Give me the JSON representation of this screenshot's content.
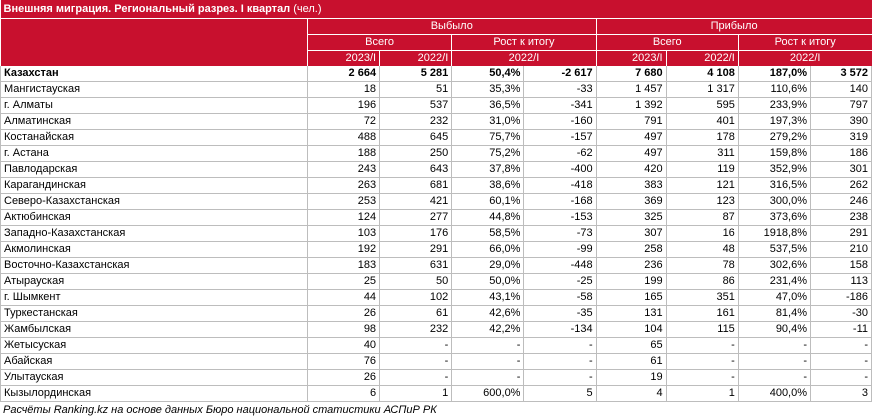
{
  "title": "Внешняя миграция. Региональный разрез. I квартал",
  "unit": "(чел.)",
  "headers": {
    "group_left": "Выбыло",
    "group_right": "Прибыло",
    "total": "Всего",
    "growth": "Рост к итогу",
    "y2023": "2023/I",
    "y2022": "2022/I"
  },
  "rows": [
    [
      "Казахстан",
      "2 664",
      "5 281",
      "50,4%",
      "-2 617",
      "7 680",
      "4 108",
      "187,0%",
      "3 572"
    ],
    [
      "Мангистауская",
      "18",
      "51",
      "35,3%",
      "-33",
      "1 457",
      "1 317",
      "110,6%",
      "140"
    ],
    [
      "г. Алматы",
      "196",
      "537",
      "36,5%",
      "-341",
      "1 392",
      "595",
      "233,9%",
      "797"
    ],
    [
      "Алматинская",
      "72",
      "232",
      "31,0%",
      "-160",
      "791",
      "401",
      "197,3%",
      "390"
    ],
    [
      "Костанайская",
      "488",
      "645",
      "75,7%",
      "-157",
      "497",
      "178",
      "279,2%",
      "319"
    ],
    [
      "г. Астана",
      "188",
      "250",
      "75,2%",
      "-62",
      "497",
      "311",
      "159,8%",
      "186"
    ],
    [
      "Павлодарская",
      "243",
      "643",
      "37,8%",
      "-400",
      "420",
      "119",
      "352,9%",
      "301"
    ],
    [
      "Карагандинская",
      "263",
      "681",
      "38,6%",
      "-418",
      "383",
      "121",
      "316,5%",
      "262"
    ],
    [
      "Северо-Казахстанская",
      "253",
      "421",
      "60,1%",
      "-168",
      "369",
      "123",
      "300,0%",
      "246"
    ],
    [
      "Актюбинская",
      "124",
      "277",
      "44,8%",
      "-153",
      "325",
      "87",
      "373,6%",
      "238"
    ],
    [
      "Западно-Казахстанская",
      "103",
      "176",
      "58,5%",
      "-73",
      "307",
      "16",
      "1918,8%",
      "291"
    ],
    [
      "Акмолинская",
      "192",
      "291",
      "66,0%",
      "-99",
      "258",
      "48",
      "537,5%",
      "210"
    ],
    [
      "Восточно-Казахстанская",
      "183",
      "631",
      "29,0%",
      "-448",
      "236",
      "78",
      "302,6%",
      "158"
    ],
    [
      "Атырауская",
      "25",
      "50",
      "50,0%",
      "-25",
      "199",
      "86",
      "231,4%",
      "113"
    ],
    [
      "г. Шымкент",
      "44",
      "102",
      "43,1%",
      "-58",
      "165",
      "351",
      "47,0%",
      "-186"
    ],
    [
      "Туркестанская",
      "26",
      "61",
      "42,6%",
      "-35",
      "131",
      "161",
      "81,4%",
      "-30"
    ],
    [
      "Жамбылская",
      "98",
      "232",
      "42,2%",
      "-134",
      "104",
      "115",
      "90,4%",
      "-11"
    ],
    [
      "Жетысуская",
      "40",
      "-",
      "-",
      "-",
      "65",
      "-",
      "-",
      "-"
    ],
    [
      "Абайская",
      "76",
      "-",
      "-",
      "-",
      "61",
      "-",
      "-",
      "-"
    ],
    [
      "Улытауская",
      "26",
      "-",
      "-",
      "-",
      "19",
      "-",
      "-",
      "-"
    ],
    [
      "Кызылординская",
      "6",
      "1",
      "600,0%",
      "5",
      "4",
      "1",
      "400,0%",
      "3"
    ]
  ],
  "footer": "Расчёты Ranking.kz на основе данных Бюро национальной статистики АСПиР РК"
}
